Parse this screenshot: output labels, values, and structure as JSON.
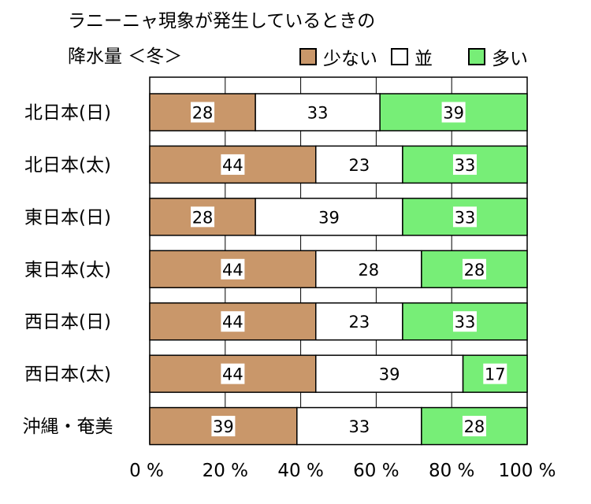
{
  "title_line1": "ラニーニャ現象が発生しているときの",
  "title_line2": "降水量 ＜冬＞",
  "chart_data": {
    "type": "bar",
    "orientation": "horizontal",
    "stacked": true,
    "categories": [
      "北日本(日)",
      "北日本(太)",
      "東日本(日)",
      "東日本(太)",
      "西日本(日)",
      "西日本(太)",
      "沖縄・奄美"
    ],
    "series": [
      {
        "name": "少ない",
        "color": "#c9976a",
        "values": [
          28,
          44,
          28,
          44,
          44,
          44,
          39
        ]
      },
      {
        "name": "並",
        "color": "#ffffff",
        "values": [
          33,
          23,
          39,
          28,
          23,
          39,
          33
        ]
      },
      {
        "name": "多い",
        "color": "#77ee77",
        "values": [
          39,
          33,
          33,
          28,
          33,
          17,
          28
        ]
      }
    ],
    "xlim": [
      0,
      100
    ],
    "xticks": [
      "0 %",
      "20 %",
      "40 %",
      "60 %",
      "80 %",
      "100 %"
    ],
    "grid": true,
    "legend_position": "top-right"
  }
}
